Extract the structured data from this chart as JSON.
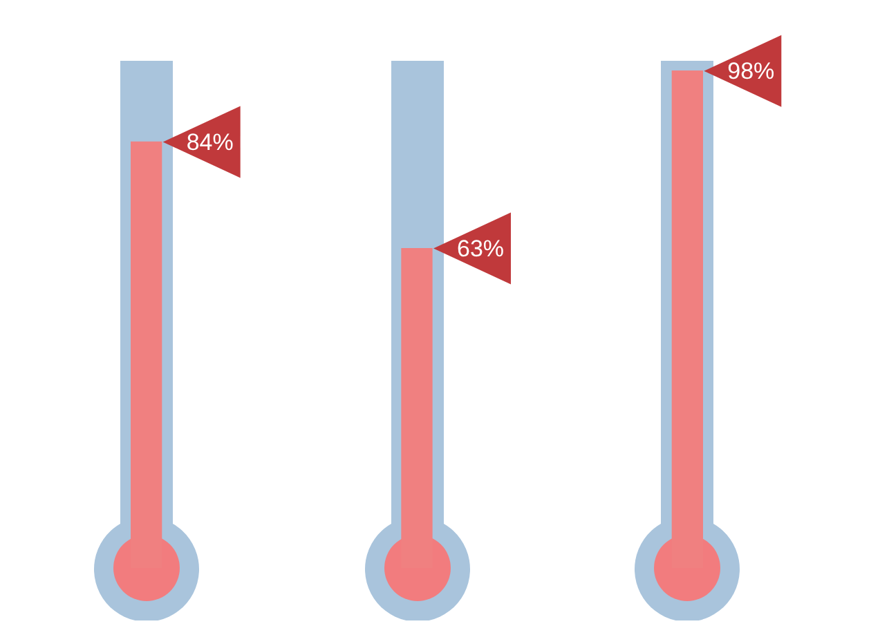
{
  "chart_data": {
    "type": "bar",
    "categories": [
      null,
      null,
      null
    ],
    "values": [
      84,
      63,
      98
    ],
    "value_labels": [
      "84%",
      "63%",
      "98%"
    ],
    "color": "#f08080",
    "legend": false
  }
}
